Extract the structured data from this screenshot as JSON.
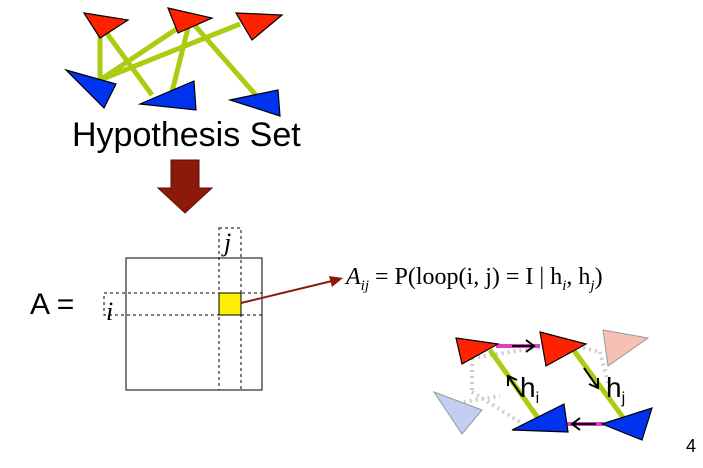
{
  "title": "Hypothesis Set",
  "matrix": {
    "name_label": "A =",
    "row_index": "i",
    "col_index": "j",
    "highlight_color": "#ffee00"
  },
  "formula": "A_{ij} = P(loop(i, j) = I | h_i, h_j)",
  "formula_display": "A",
  "formula_sub": "ij",
  "formula_rest": " = P(loop(i, j) = I | h",
  "formula_h1_sub": "i",
  "formula_mid": ", h",
  "formula_h2_sub": "j",
  "formula_end": ")",
  "hyp_labels": {
    "h_i": "h",
    "h_i_sub": "i",
    "h_j": "h",
    "h_j_sub": "j"
  },
  "page_number": "4",
  "colors": {
    "red": "#ff2200",
    "blue": "#0033ee",
    "green": "#aacc11",
    "arrow": "#8b1a0a",
    "magenta": "#e040c0",
    "faded_red": "#f6c0b4",
    "faded_blue": "#c4cdf2"
  }
}
